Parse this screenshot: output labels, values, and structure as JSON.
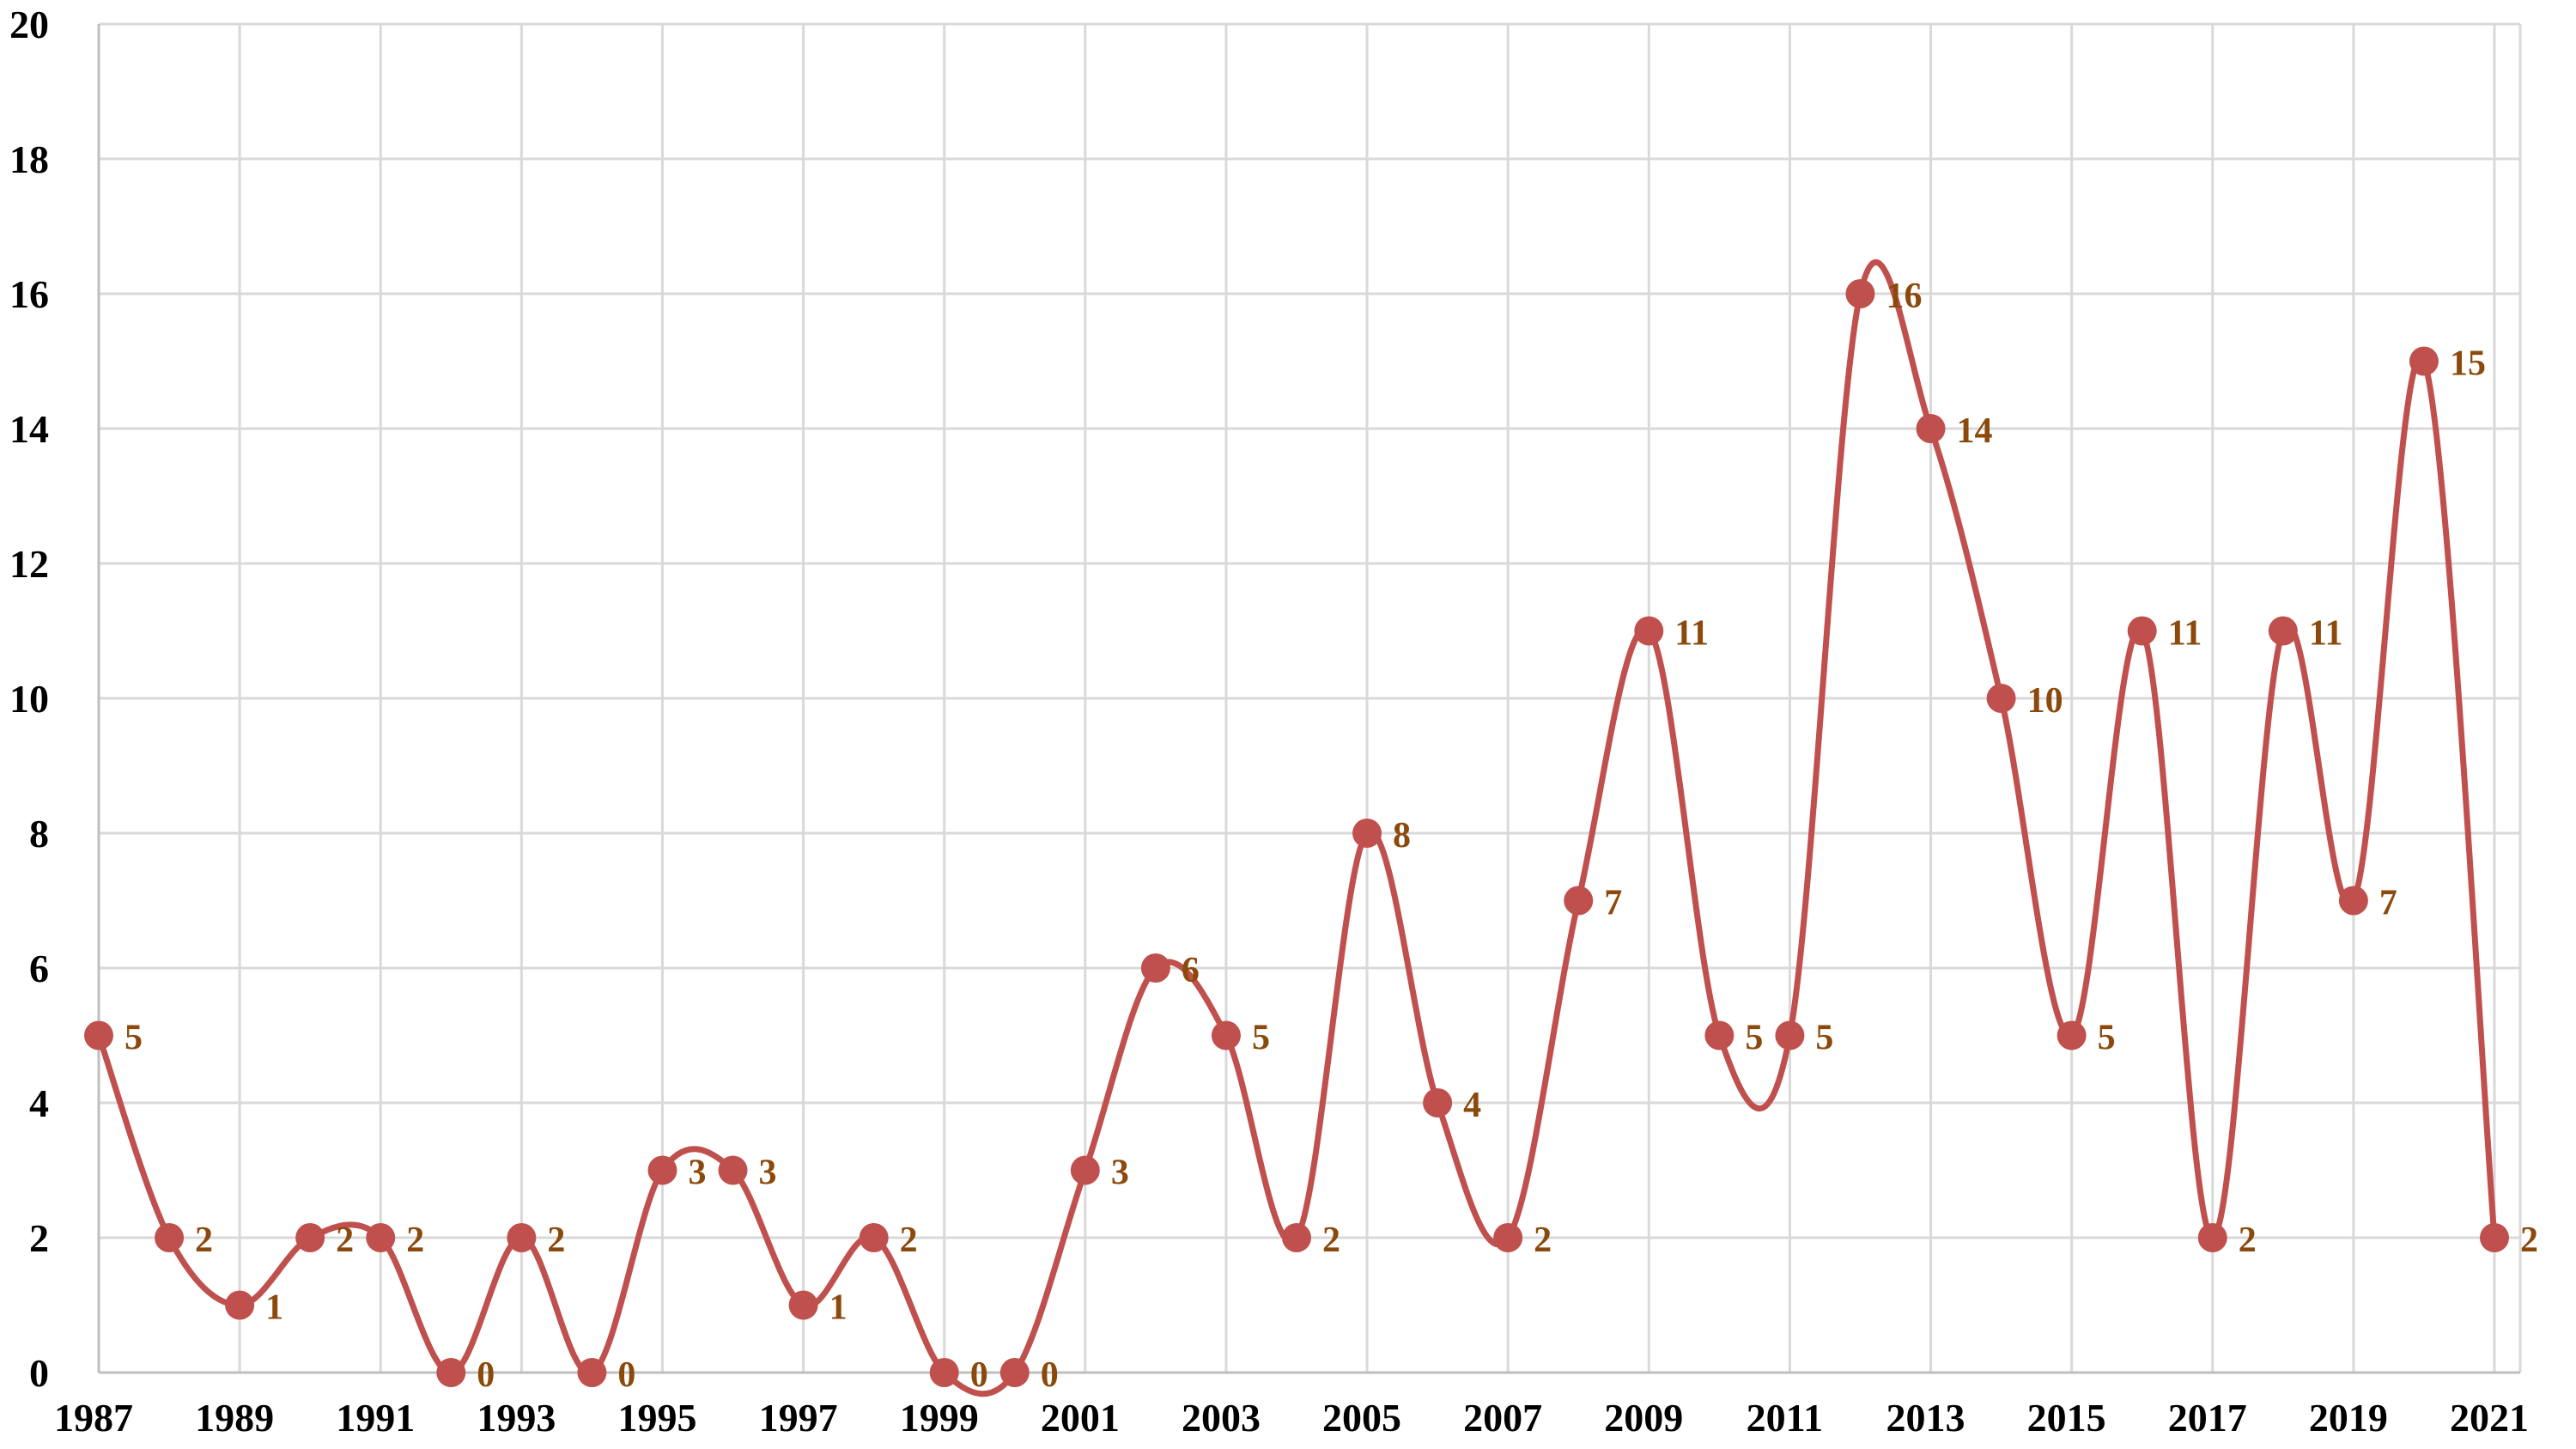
{
  "chart_data": {
    "type": "line",
    "smooth": true,
    "x": [
      1987,
      1988,
      1989,
      1990,
      1991,
      1992,
      1993,
      1994,
      1995,
      1996,
      1997,
      1998,
      1999,
      2000,
      2001,
      2002,
      2003,
      2004,
      2005,
      2006,
      2007,
      2008,
      2009,
      2010,
      2011,
      2012,
      2013,
      2014,
      2015,
      2016,
      2017,
      2018,
      2019,
      2020,
      2021
    ],
    "series": [
      {
        "values": [
          5,
          2,
          1,
          2,
          2,
          0,
          2,
          0,
          3,
          3,
          1,
          2,
          0,
          0,
          3,
          6,
          5,
          2,
          8,
          4,
          2,
          7,
          11,
          5,
          5,
          16,
          14,
          10,
          5,
          11,
          2,
          11,
          7,
          15,
          2
        ]
      }
    ],
    "x_tick_labels": [
      "1987",
      "1989",
      "1991",
      "1993",
      "1995",
      "1997",
      "1999",
      "2001",
      "2003",
      "2005",
      "2007",
      "2009",
      "2011",
      "2013",
      "2015",
      "2017",
      "2019",
      "2021"
    ],
    "y_tick_labels": [
      "0",
      "2",
      "4",
      "6",
      "8",
      "10",
      "12",
      "14",
      "16",
      "18",
      "20"
    ],
    "xlim": [
      1987,
      2021
    ],
    "ylim": [
      0,
      20
    ],
    "grid": true,
    "data_labels": true,
    "legend": "none",
    "colors": {
      "line": "#c0504d",
      "marker": "#c0504d",
      "data_label": "#8b4a0c",
      "grid": "#d9d9d9",
      "axis_text": "#000000"
    }
  }
}
